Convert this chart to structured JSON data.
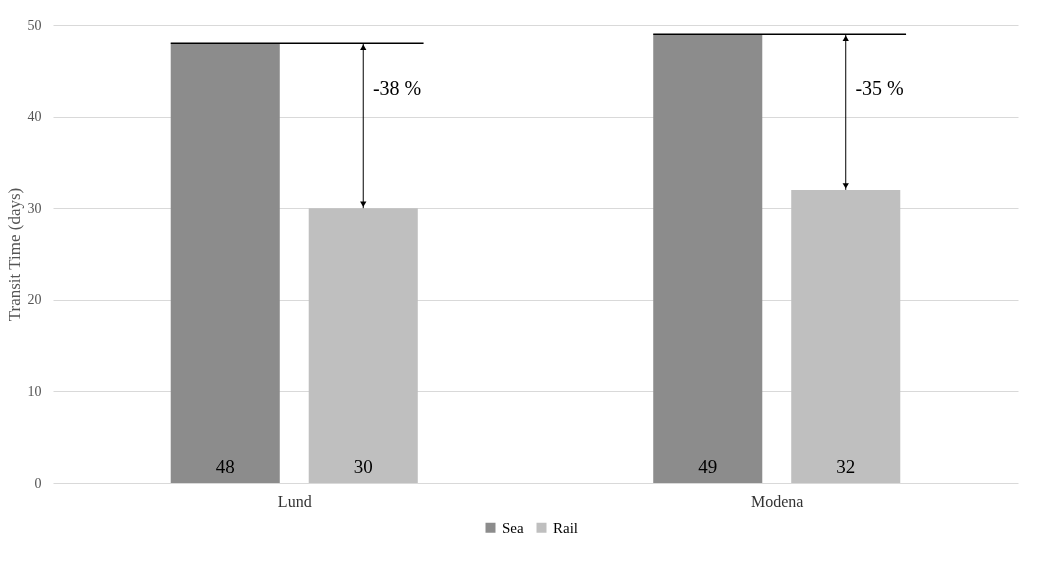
{
  "chart_data": {
    "type": "bar",
    "ylabel": "Transit Time (days)",
    "categories": [
      "Lund",
      "Modena"
    ],
    "series": [
      {
        "name": "Sea",
        "color": "#8c8c8c",
        "values": [
          48,
          49
        ]
      },
      {
        "name": "Rail",
        "color": "#bfbfbf",
        "values": [
          30,
          32
        ]
      }
    ],
    "ylim": [
      0,
      50
    ],
    "yticks": [
      0,
      10,
      20,
      30,
      40,
      50
    ],
    "grid": "y",
    "legend": "bottom",
    "data_labels": true,
    "annotations": [
      "-38 %",
      "-35 %"
    ]
  }
}
